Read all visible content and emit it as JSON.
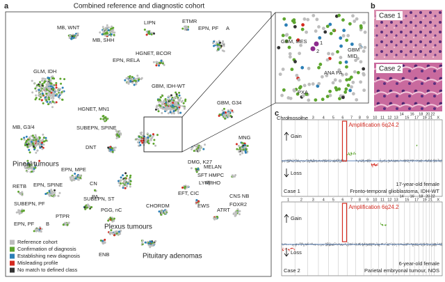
{
  "panel_a": {
    "letter": "a",
    "title": "Combined reference and diagnostic cohort",
    "cluster_labels": [
      "MB, WNT",
      "LIPN",
      "ETMR",
      "MB, SHH",
      "HGNET, BCOR",
      "EPN, PF",
      "A",
      "EPN, RELA",
      "GLM, IDH",
      "GBM, IDH-WT",
      "GBM, G34",
      "HGNET, MN1",
      "MB, G3/4",
      "SUBEPN, SPINE",
      "MNG",
      "DNT",
      "DMG, K27",
      "MELAN",
      "SFT HMPC",
      "LYMPHO",
      "EPN, MPE",
      "CN",
      "EFT, CIC",
      "RETB",
      "EPN, SPINE",
      "PA",
      "EWS",
      "SUBEPN, ST",
      "CNS NB",
      "FOXR2",
      "CHORDM",
      "ATRT",
      "SUBEPN, PF",
      "PGG, nC",
      "PTPR",
      "EPN, PF",
      "B",
      "ENB"
    ],
    "big_labels": [
      "Pineal tumours",
      "Plexus tumours",
      "Pituitary adenomas"
    ],
    "legend": [
      {
        "label": "Reference cohort",
        "color": "#bdbdbd"
      },
      {
        "label": "Confirmation of diagnosis",
        "color": "#5da52e"
      },
      {
        "label": "Establishing new diagnosis",
        "color": "#2b7fb6"
      },
      {
        "label": "Misleading profile",
        "color": "#d42a20"
      },
      {
        "label": "No match to defined class",
        "color": "#333333"
      }
    ],
    "inset_labels": [
      "GBM, MES",
      "1",
      "2",
      "GBM",
      "MID",
      "ANA PA",
      "PXA"
    ]
  },
  "panel_b": {
    "letter": "b",
    "cases": [
      "Case 1",
      "Case 2"
    ]
  },
  "panel_c": {
    "letter": "c",
    "chromosome_label": "Chromosome",
    "chromosomes": [
      "1",
      "2",
      "3",
      "4",
      "5",
      "6",
      "7",
      "8",
      "9",
      "10",
      "11",
      "12",
      "13",
      "14",
      "15",
      "16",
      "17",
      "18",
      "19",
      "20",
      "21",
      "22",
      "X"
    ],
    "plots": [
      {
        "amplification": "Amplification 6q24.2",
        "gain": "Gain",
        "loss": "Loss",
        "case": "Case 1",
        "patient": "17-year-old female",
        "diagnosis": "Fronto-temporal glioblastoma, IDH-WT"
      },
      {
        "amplification": "Amplification 6q24.2",
        "gain": "Gain",
        "loss": "Loss",
        "case": "Case 2",
        "patient": "6-year-old female",
        "diagnosis": "Parietal embryonal tumour, NOS"
      }
    ]
  }
}
